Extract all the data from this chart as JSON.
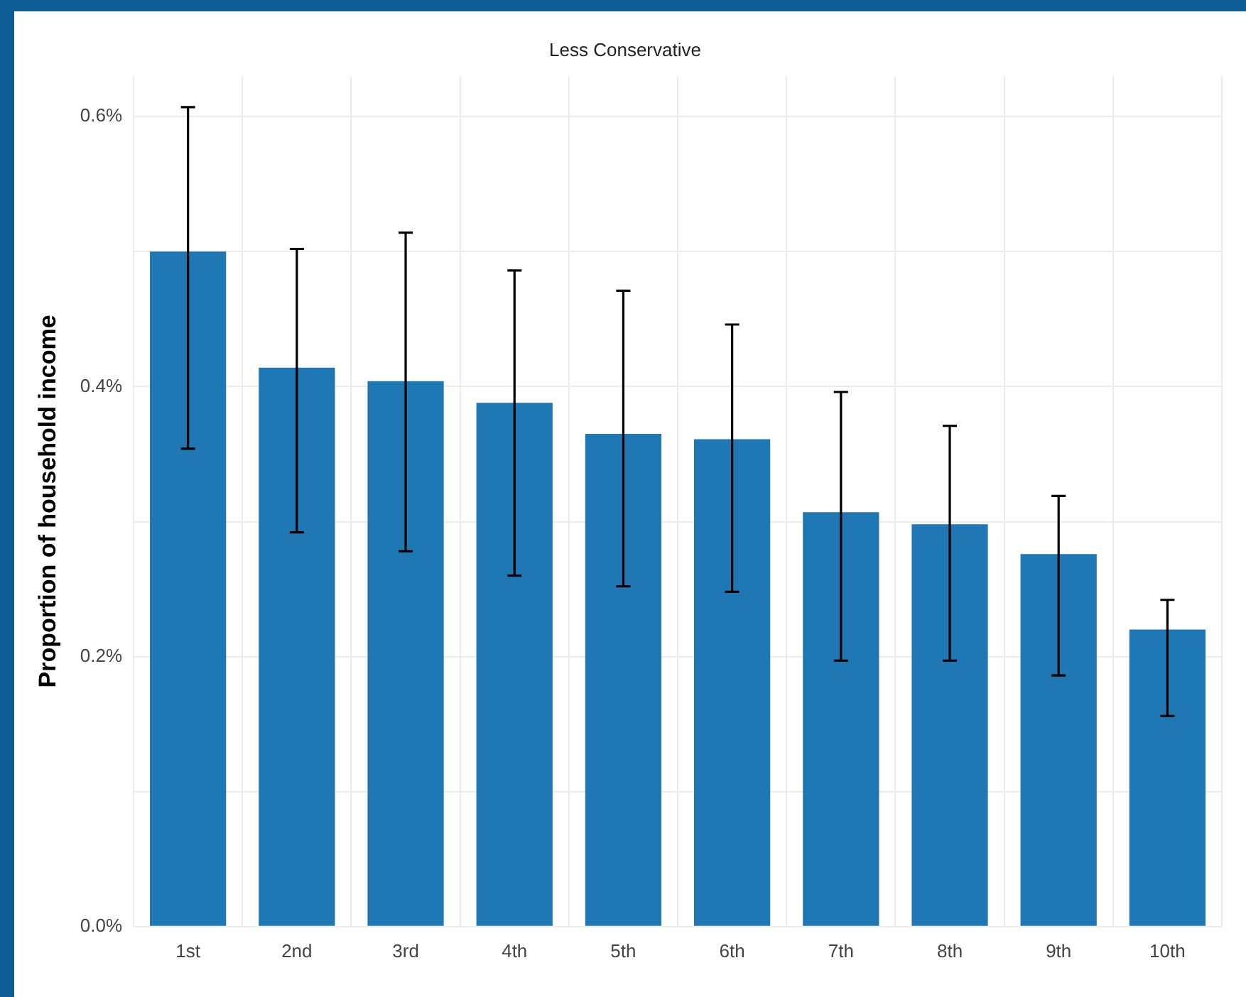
{
  "chart_data": {
    "type": "bar",
    "title": "Less Conservative",
    "ylabel": "Proportion of household income",
    "categories": [
      "1st",
      "2nd",
      "3rd",
      "4th",
      "5th",
      "6th",
      "7th",
      "8th",
      "9th",
      "10th"
    ],
    "values": [
      0.5,
      0.414,
      0.404,
      0.388,
      0.365,
      0.361,
      0.307,
      0.298,
      0.276,
      0.22
    ],
    "errors": [
      [
        0.354,
        0.607
      ],
      [
        0.292,
        0.502
      ],
      [
        0.278,
        0.514
      ],
      [
        0.26,
        0.486
      ],
      [
        0.252,
        0.471
      ],
      [
        0.248,
        0.446
      ],
      [
        0.197,
        0.396
      ],
      [
        0.197,
        0.371
      ],
      [
        0.186,
        0.319
      ],
      [
        0.156,
        0.242
      ]
    ],
    "color": "#1f77b4",
    "ylim": [
      0,
      0.63
    ],
    "yticks": [
      {
        "value": 0,
        "label": "0.0%"
      },
      {
        "value": 0.1,
        "label": null
      },
      {
        "value": 0.2,
        "label": "0.2%"
      },
      {
        "value": 0.3,
        "label": null
      },
      {
        "value": 0.4,
        "label": "0.4%"
      },
      {
        "value": 0.5,
        "label": null
      },
      {
        "value": 0.6,
        "label": "0.6%"
      }
    ],
    "grid": true
  }
}
